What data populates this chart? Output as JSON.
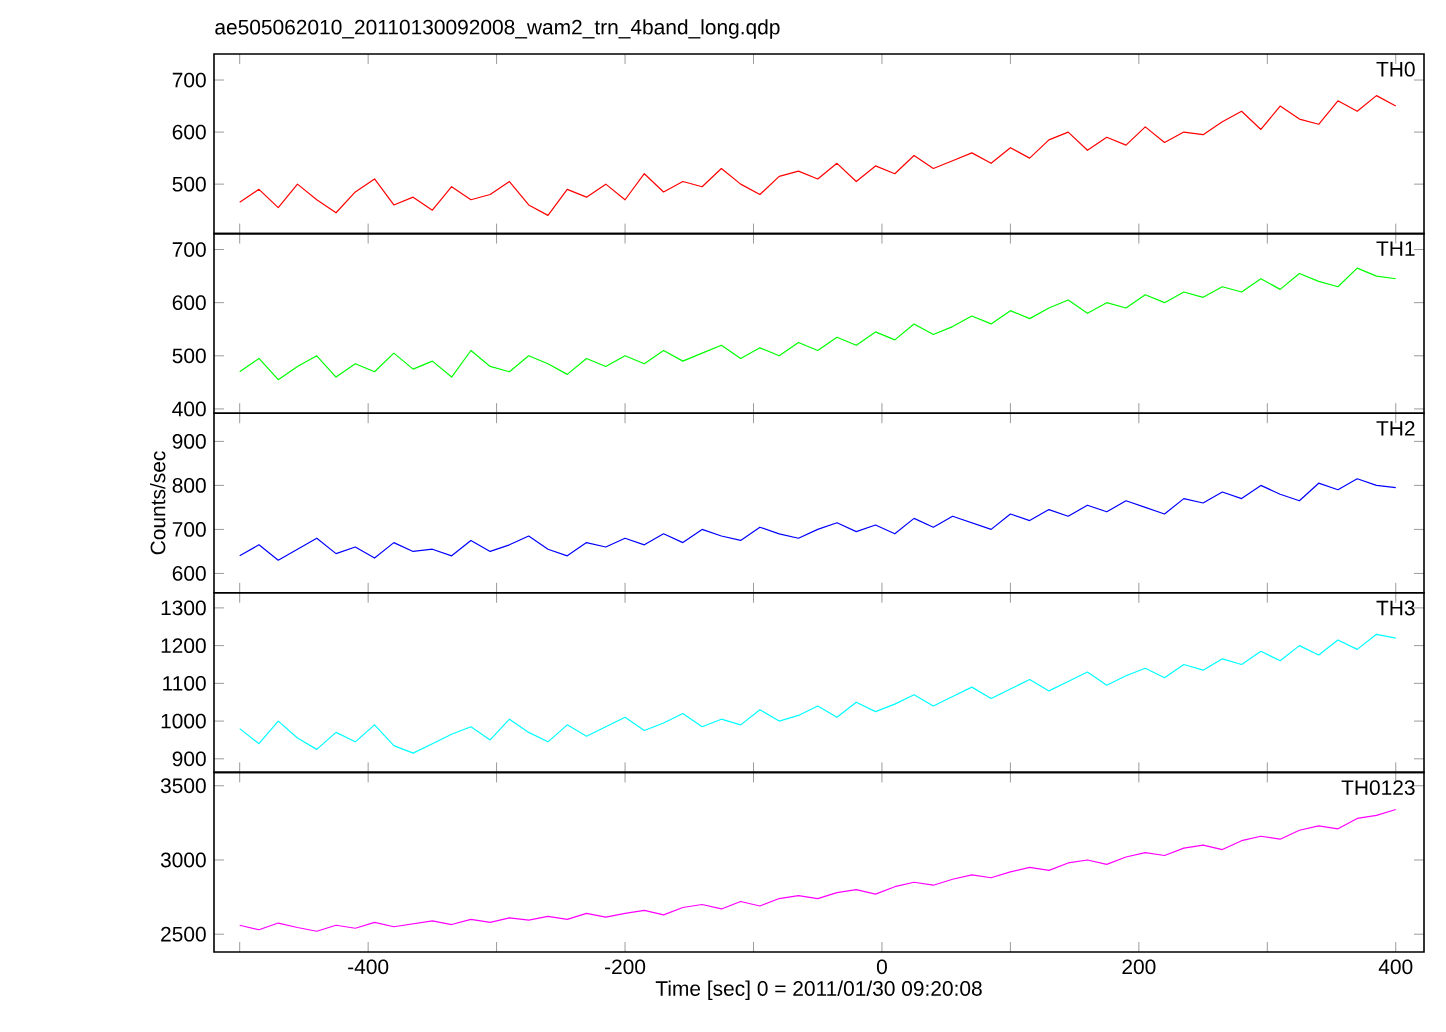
{
  "chart_data": [
    {
      "type": "line",
      "title": "ae505062010_20110130092008_wam2_trn_4band_long.qdp",
      "tick_labels": "y",
      "xlim": [
        -520,
        422
      ],
      "ylim": [
        405,
        750
      ],
      "yticks": [
        500,
        600,
        700
      ],
      "xticks": [
        {
          "value": -500,
          "label": null
        },
        -400,
        {
          "value": -300,
          "label": null
        },
        -200,
        {
          "value": -100,
          "label": null
        },
        0,
        {
          "value": 100,
          "label": null
        },
        200,
        {
          "value": 300,
          "label": null
        },
        400
      ],
      "x": [
        -500,
        -485,
        -470,
        -455,
        -440,
        -425,
        -410,
        -395,
        -380,
        -365,
        -350,
        -335,
        -320,
        -305,
        -290,
        -275,
        -260,
        -245,
        -230,
        -215,
        -200,
        -185,
        -170,
        -155,
        -140,
        -125,
        -110,
        -95,
        -80,
        -65,
        -50,
        -35,
        -20,
        -5,
        10,
        25,
        40,
        55,
        70,
        85,
        100,
        115,
        130,
        145,
        160,
        175,
        190,
        205,
        220,
        235,
        250,
        265,
        280,
        295,
        310,
        325,
        340,
        355,
        370,
        385,
        400
      ],
      "series": [
        {
          "name": "TH0",
          "color": "#ff0000",
          "values": [
            465,
            490,
            455,
            500,
            470,
            445,
            485,
            510,
            460,
            475,
            450,
            495,
            470,
            480,
            505,
            460,
            440,
            490,
            475,
            500,
            470,
            520,
            485,
            505,
            495,
            530,
            500,
            480,
            515,
            525,
            510,
            540,
            505,
            535,
            520,
            555,
            530,
            545,
            560,
            540,
            570,
            550,
            585,
            600,
            565,
            590,
            575,
            610,
            580,
            600,
            595,
            620,
            640,
            605,
            650,
            625,
            615,
            660,
            640,
            670,
            650
          ]
        }
      ]
    },
    {
      "type": "line",
      "tick_labels": "y",
      "xlim": [
        -520,
        422
      ],
      "ylim": [
        392,
        730
      ],
      "yticks": [
        400,
        500,
        600,
        700
      ],
      "xticks": [
        {
          "value": -500,
          "label": null
        },
        -400,
        {
          "value": -300,
          "label": null
        },
        -200,
        {
          "value": -100,
          "label": null
        },
        0,
        {
          "value": 100,
          "label": null
        },
        200,
        {
          "value": 300,
          "label": null
        },
        400
      ],
      "x": [
        -500,
        -485,
        -470,
        -455,
        -440,
        -425,
        -410,
        -395,
        -380,
        -365,
        -350,
        -335,
        -320,
        -305,
        -290,
        -275,
        -260,
        -245,
        -230,
        -215,
        -200,
        -185,
        -170,
        -155,
        -140,
        -125,
        -110,
        -95,
        -80,
        -65,
        -50,
        -35,
        -20,
        -5,
        10,
        25,
        40,
        55,
        70,
        85,
        100,
        115,
        130,
        145,
        160,
        175,
        190,
        205,
        220,
        235,
        250,
        265,
        280,
        295,
        310,
        325,
        340,
        355,
        370,
        385,
        400
      ],
      "series": [
        {
          "name": "TH1",
          "color": "#00ff00",
          "values": [
            470,
            495,
            455,
            480,
            500,
            460,
            485,
            470,
            505,
            475,
            490,
            460,
            510,
            480,
            470,
            500,
            485,
            465,
            495,
            480,
            500,
            485,
            510,
            490,
            505,
            520,
            495,
            515,
            500,
            525,
            510,
            535,
            520,
            545,
            530,
            560,
            540,
            555,
            575,
            560,
            585,
            570,
            590,
            605,
            580,
            600,
            590,
            615,
            600,
            620,
            610,
            630,
            620,
            645,
            625,
            655,
            640,
            630,
            665,
            650,
            645
          ]
        }
      ]
    },
    {
      "type": "line",
      "tick_labels": "y",
      "ylabel": "Counts/sec",
      "xlim": [
        -520,
        422
      ],
      "ylim": [
        556,
        964
      ],
      "yticks": [
        600,
        700,
        800,
        900
      ],
      "xticks": [
        {
          "value": -500,
          "label": null
        },
        -400,
        {
          "value": -300,
          "label": null
        },
        -200,
        {
          "value": -100,
          "label": null
        },
        0,
        {
          "value": 100,
          "label": null
        },
        200,
        {
          "value": 300,
          "label": null
        },
        400
      ],
      "x": [
        -500,
        -485,
        -470,
        -455,
        -440,
        -425,
        -410,
        -395,
        -380,
        -365,
        -350,
        -335,
        -320,
        -305,
        -290,
        -275,
        -260,
        -245,
        -230,
        -215,
        -200,
        -185,
        -170,
        -155,
        -140,
        -125,
        -110,
        -95,
        -80,
        -65,
        -50,
        -35,
        -20,
        -5,
        10,
        25,
        40,
        55,
        70,
        85,
        100,
        115,
        130,
        145,
        160,
        175,
        190,
        205,
        220,
        235,
        250,
        265,
        280,
        295,
        310,
        325,
        340,
        355,
        370,
        385,
        400
      ],
      "series": [
        {
          "name": "TH2",
          "color": "#0000ff",
          "values": [
            640,
            665,
            630,
            655,
            680,
            645,
            660,
            635,
            670,
            650,
            655,
            640,
            675,
            650,
            665,
            685,
            655,
            640,
            670,
            660,
            680,
            665,
            690,
            670,
            700,
            685,
            675,
            705,
            690,
            680,
            700,
            715,
            695,
            710,
            690,
            725,
            705,
            730,
            715,
            700,
            735,
            720,
            745,
            730,
            755,
            740,
            765,
            750,
            735,
            770,
            760,
            785,
            770,
            800,
            780,
            765,
            805,
            790,
            815,
            800,
            795
          ]
        }
      ]
    },
    {
      "type": "line",
      "tick_labels": "y",
      "xlim": [
        -520,
        422
      ],
      "ylim": [
        864,
        1340
      ],
      "yticks": [
        900,
        1000,
        1100,
        1200,
        1300
      ],
      "xticks": [
        {
          "value": -500,
          "label": null
        },
        -400,
        {
          "value": -300,
          "label": null
        },
        -200,
        {
          "value": -100,
          "label": null
        },
        0,
        {
          "value": 100,
          "label": null
        },
        200,
        {
          "value": 300,
          "label": null
        },
        400
      ],
      "x": [
        -500,
        -485,
        -470,
        -455,
        -440,
        -425,
        -410,
        -395,
        -380,
        -365,
        -350,
        -335,
        -320,
        -305,
        -290,
        -275,
        -260,
        -245,
        -230,
        -215,
        -200,
        -185,
        -170,
        -155,
        -140,
        -125,
        -110,
        -95,
        -80,
        -65,
        -50,
        -35,
        -20,
        -5,
        10,
        25,
        40,
        55,
        70,
        85,
        100,
        115,
        130,
        145,
        160,
        175,
        190,
        205,
        220,
        235,
        250,
        265,
        280,
        295,
        310,
        325,
        340,
        355,
        370,
        385,
        400
      ],
      "series": [
        {
          "name": "TH3",
          "color": "#00ffff",
          "values": [
            980,
            940,
            1000,
            955,
            925,
            970,
            945,
            990,
            935,
            915,
            940,
            965,
            985,
            950,
            1005,
            970,
            945,
            990,
            960,
            985,
            1010,
            975,
            995,
            1020,
            985,
            1005,
            990,
            1030,
            1000,
            1015,
            1040,
            1010,
            1050,
            1025,
            1045,
            1070,
            1040,
            1065,
            1090,
            1060,
            1085,
            1110,
            1080,
            1105,
            1130,
            1095,
            1120,
            1140,
            1115,
            1150,
            1135,
            1165,
            1150,
            1185,
            1160,
            1200,
            1175,
            1215,
            1190,
            1230,
            1220
          ]
        }
      ]
    },
    {
      "type": "line",
      "xlabel": "Time [sec] 0 = 2011/01/30 09:20:08",
      "xlim": [
        -520,
        422
      ],
      "ylim": [
        2380,
        3590
      ],
      "yticks": [
        2500,
        3000,
        3500
      ],
      "xticks": [
        {
          "value": -500,
          "label": null
        },
        -400,
        {
          "value": -300,
          "label": null
        },
        -200,
        {
          "value": -100,
          "label": null
        },
        0,
        {
          "value": 100,
          "label": null
        },
        200,
        {
          "value": 300,
          "label": null
        },
        400
      ],
      "x": [
        -500,
        -485,
        -470,
        -455,
        -440,
        -425,
        -410,
        -395,
        -380,
        -365,
        -350,
        -335,
        -320,
        -305,
        -290,
        -275,
        -260,
        -245,
        -230,
        -215,
        -200,
        -185,
        -170,
        -155,
        -140,
        -125,
        -110,
        -95,
        -80,
        -65,
        -50,
        -35,
        -20,
        -5,
        10,
        25,
        40,
        55,
        70,
        85,
        100,
        115,
        130,
        145,
        160,
        175,
        190,
        205,
        220,
        235,
        250,
        265,
        280,
        295,
        310,
        325,
        340,
        355,
        370,
        385,
        400
      ],
      "series": [
        {
          "name": "TH0123",
          "color": "#ff00ff",
          "values": [
            2560,
            2530,
            2575,
            2545,
            2520,
            2560,
            2540,
            2580,
            2550,
            2570,
            2590,
            2565,
            2600,
            2580,
            2610,
            2595,
            2620,
            2600,
            2640,
            2615,
            2640,
            2660,
            2630,
            2680,
            2700,
            2670,
            2720,
            2690,
            2740,
            2760,
            2740,
            2780,
            2800,
            2770,
            2820,
            2850,
            2830,
            2870,
            2900,
            2880,
            2920,
            2950,
            2930,
            2980,
            3000,
            2970,
            3020,
            3050,
            3030,
            3080,
            3100,
            3070,
            3130,
            3160,
            3140,
            3200,
            3230,
            3210,
            3280,
            3300,
            3340
          ]
        }
      ]
    }
  ]
}
